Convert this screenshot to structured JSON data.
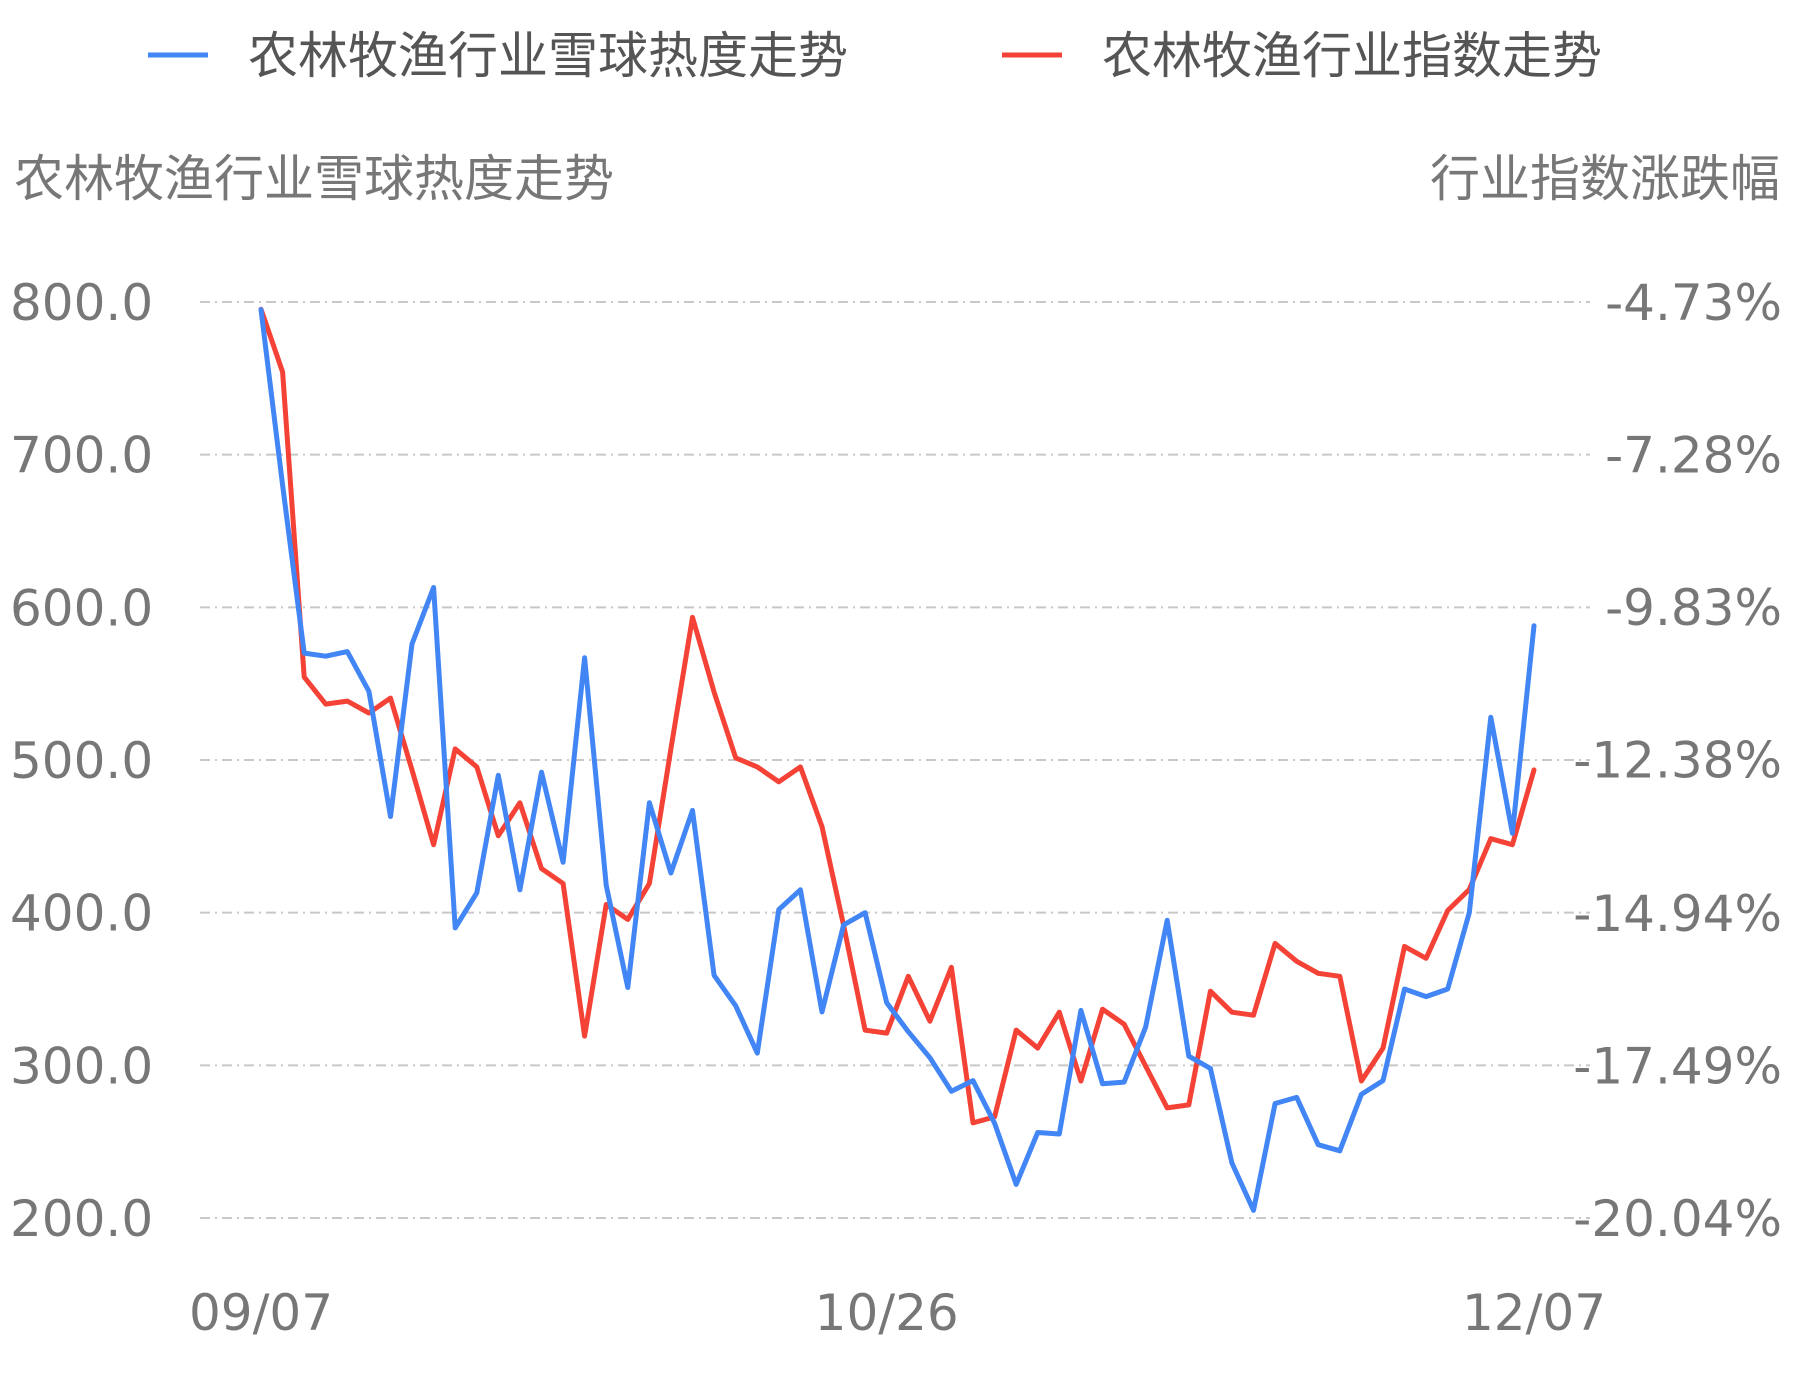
{
  "chart_data": {
    "type": "line",
    "legend": {
      "position": "top",
      "entries": [
        {
          "label": "农林牧渔行业雪球热度走势",
          "color": "#4285F4"
        },
        {
          "label": "农林牧渔行业指数走势",
          "color": "#F44336"
        }
      ]
    },
    "y_left": {
      "title": "农林牧渔行业雪球热度走势",
      "range": [
        200,
        800
      ],
      "ticks": [
        "800.0",
        "700.0",
        "600.0",
        "500.0",
        "400.0",
        "300.0",
        "200.0"
      ],
      "tick_values": [
        800,
        700,
        600,
        500,
        400,
        300,
        200
      ]
    },
    "y_right": {
      "title": "行业指数涨跌幅",
      "range": [
        -20.04,
        -4.73
      ],
      "ticks": [
        "-4.73%",
        "-7.28%",
        "-9.83%",
        "-12.38%",
        "-14.94%",
        "-17.49%",
        "-20.04%"
      ],
      "tick_values": [
        -4.73,
        -7.28,
        -9.83,
        -12.38,
        -14.94,
        -17.49,
        -20.04
      ]
    },
    "x_axis": {
      "tick_labels": [
        "09/07",
        "10/26",
        "12/07"
      ],
      "tick_indices": [
        0,
        29,
        59
      ]
    },
    "grid": "horizontal-dashed",
    "series": [
      {
        "name": "农林牧渔行业雪球热度走势",
        "axis": "left",
        "color": "#4285F4",
        "values": [
          795,
          680,
          570,
          568,
          571,
          545,
          463,
          576,
          613,
          390,
          413,
          490,
          415,
          492,
          433,
          567,
          418,
          351,
          472,
          426,
          467,
          359,
          339,
          308,
          402,
          415,
          335,
          392,
          400,
          341,
          322,
          305,
          283,
          290,
          262,
          222,
          256,
          255,
          336,
          288,
          289,
          325,
          395,
          306,
          298,
          236,
          205,
          275,
          279,
          248,
          244,
          281,
          290,
          350,
          345,
          350,
          400,
          528,
          452,
          588
        ]
      },
      {
        "name": "农林牧渔行业指数走势",
        "axis": "right",
        "values": [
          -4.85,
          -5.9,
          -11.0,
          -11.45,
          -11.4,
          -11.6,
          -11.35,
          -12.55,
          -13.8,
          -12.2,
          -12.5,
          -13.65,
          -13.1,
          -14.2,
          -14.45,
          -17.0,
          -14.8,
          -15.05,
          -14.45,
          -12.2,
          -10.0,
          -11.25,
          -12.35,
          -12.5,
          -12.75,
          -12.5,
          -13.5,
          -15.15,
          -16.9,
          -16.95,
          -16.0,
          -16.75,
          -15.85,
          -18.45,
          -18.35,
          -16.9,
          -17.2,
          -16.6,
          -17.75,
          -16.55,
          -16.8,
          -17.5,
          -18.2,
          -18.15,
          -16.25,
          -16.6,
          -16.65,
          -15.45,
          -15.75,
          -15.95,
          -16.0,
          -17.75,
          -17.2,
          -15.5,
          -15.7,
          -14.9,
          -14.55,
          -13.7,
          -13.8,
          -12.55
        ],
        "color": "#F44336"
      }
    ]
  }
}
